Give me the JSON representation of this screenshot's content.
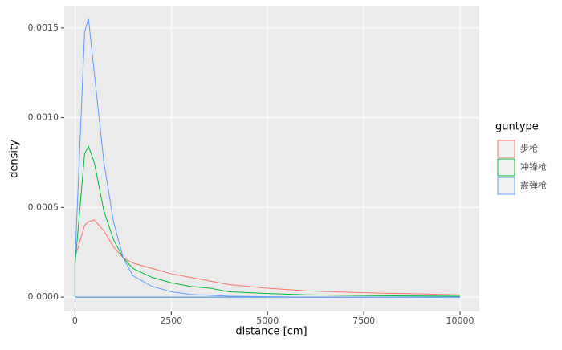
{
  "chart_data": {
    "type": "line",
    "x_label": "distance [cm]",
    "y_label": "density",
    "legend_title": "guntype",
    "x": [
      0,
      250,
      350,
      500,
      750,
      1000,
      1250,
      1500,
      2000,
      2500,
      3000,
      3500,
      4000,
      5000,
      6000,
      7000,
      8000,
      9000,
      10000
    ],
    "series": [
      {
        "name": "步枪",
        "color": "#F8766D",
        "values": [
          0.00022,
          0.0004,
          0.00042,
          0.00043,
          0.00037,
          0.00028,
          0.00022,
          0.00019,
          0.00016,
          0.00013,
          0.00011,
          9e-05,
          7e-05,
          5e-05,
          3.5e-05,
          2.8e-05,
          2.2e-05,
          1.8e-05,
          1.2e-05
        ]
      },
      {
        "name": "冲锋枪",
        "color": "#00BA38",
        "values": [
          0.00018,
          0.0008,
          0.00084,
          0.00075,
          0.00048,
          0.00032,
          0.00022,
          0.00016,
          0.00011,
          8e-05,
          6e-05,
          5e-05,
          3e-05,
          2e-05,
          1.3e-05,
          1e-05,
          8e-06,
          6e-06,
          5e-06
        ]
      },
      {
        "name": "霰弹枪",
        "color": "#619CFF",
        "values": [
          0.0002,
          0.00148,
          0.00155,
          0.00125,
          0.00075,
          0.00042,
          0.00022,
          0.00012,
          6e-05,
          3e-05,
          1.5e-05,
          1e-05,
          5e-06,
          2e-06,
          0,
          0,
          0,
          0,
          0
        ]
      }
    ],
    "xlim": [
      -280,
      10500
    ],
    "ylim": [
      -8e-05,
      0.00162
    ],
    "xticks": [
      0,
      2500,
      5000,
      7500,
      10000
    ],
    "yticks": [
      {
        "value": 0,
        "label": "0.0000"
      },
      {
        "value": 0.0005,
        "label": "0.0005"
      },
      {
        "value": 0.001,
        "label": "0.0010"
      },
      {
        "value": 0.0015,
        "label": "0.0015"
      }
    ],
    "grid": true,
    "legend": "right"
  }
}
